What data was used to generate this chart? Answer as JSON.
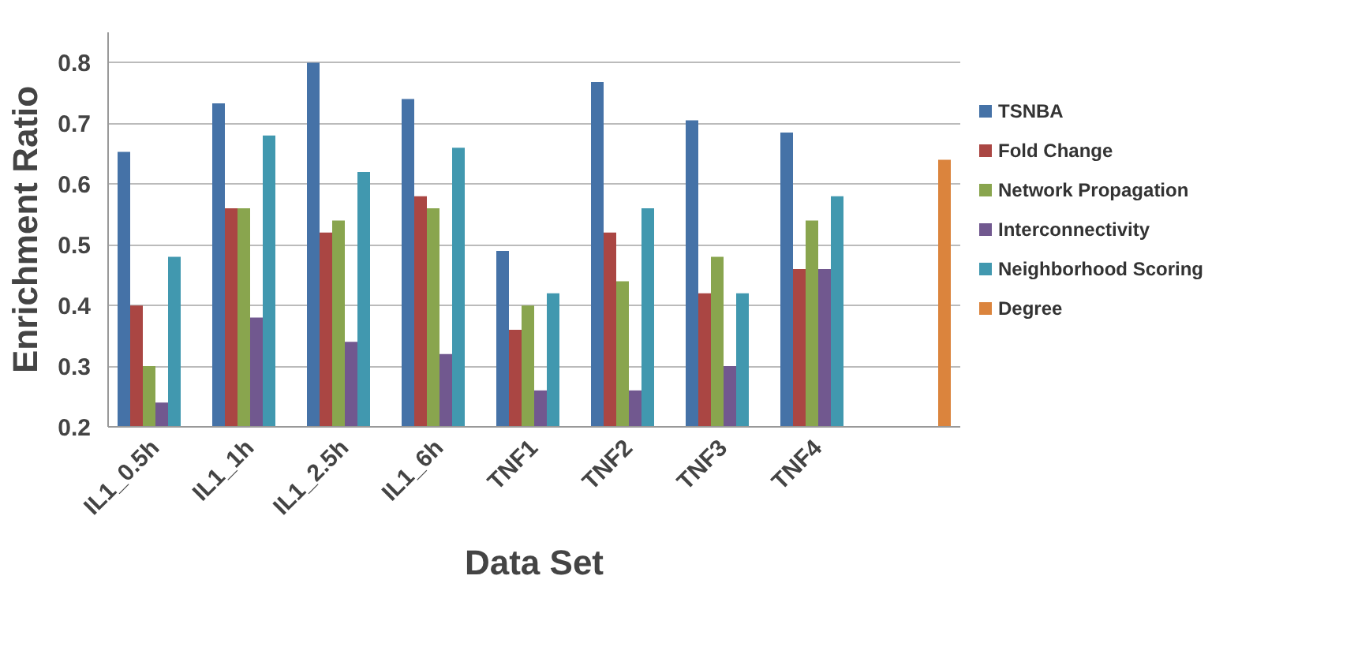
{
  "chart_data": {
    "type": "bar",
    "xlabel": "Data Set",
    "ylabel": "Enrichment Ratio",
    "categories": [
      "IL1_0.5h",
      "IL1_1h",
      "IL1_2.5h",
      "IL1_6h",
      "TNF1",
      "TNF2",
      "TNF3",
      "TNF4",
      null
    ],
    "series": [
      {
        "name": "TSNBA",
        "color": "#4572a7",
        "values": [
          0.653,
          0.733,
          0.8,
          0.74,
          0.49,
          0.768,
          0.705,
          0.685,
          null
        ]
      },
      {
        "name": "Fold Change",
        "color": "#aa4643",
        "values": [
          0.4,
          0.56,
          0.52,
          0.58,
          0.36,
          0.52,
          0.42,
          0.46,
          null
        ]
      },
      {
        "name": "Network Propagation",
        "color": "#89a54e",
        "values": [
          0.3,
          0.56,
          0.54,
          0.56,
          0.4,
          0.44,
          0.48,
          0.54,
          null
        ]
      },
      {
        "name": "Interconnectivity",
        "color": "#71588f",
        "values": [
          0.24,
          0.38,
          0.34,
          0.32,
          0.26,
          0.26,
          0.3,
          0.46,
          null
        ]
      },
      {
        "name": "Neighborhood Scoring",
        "color": "#4198af",
        "values": [
          0.48,
          0.68,
          0.62,
          0.66,
          0.42,
          0.56,
          0.42,
          0.58,
          null
        ]
      },
      {
        "name": "Degree",
        "color": "#db843d",
        "values": [
          null,
          null,
          null,
          null,
          null,
          null,
          null,
          null,
          0.64
        ]
      }
    ],
    "ylim": [
      0.2,
      0.85
    ],
    "yticks": [
      0.2,
      0.3,
      0.4,
      0.5,
      0.6,
      0.7,
      0.8
    ],
    "grid": "y",
    "legend": "right"
  }
}
